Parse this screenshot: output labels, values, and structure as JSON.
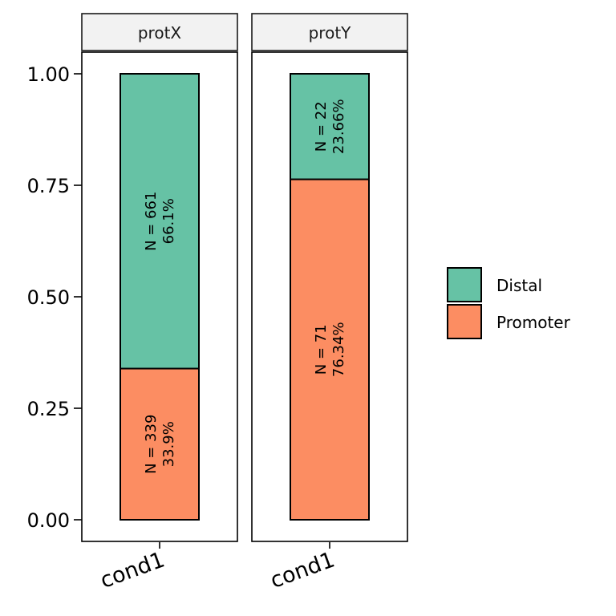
{
  "chart_data": {
    "type": "bar",
    "stacked": true,
    "facet_by": "protein",
    "y_ticks": [
      "0.00",
      "0.25",
      "0.50",
      "0.75",
      "1.00"
    ],
    "y_tick_values": [
      0,
      0.25,
      0.5,
      0.75,
      1.0
    ],
    "ylim": [
      -0.05,
      1.05
    ],
    "grid": false,
    "legend_position": "right",
    "colors": {
      "Distal": "#66c2a5",
      "Promoter": "#fc8d62"
    },
    "legend": [
      {
        "name": "Distal",
        "color": "#66c2a5"
      },
      {
        "name": "Promoter",
        "color": "#fc8d62"
      }
    ],
    "panels": [
      {
        "strip": "protX",
        "category": "cond1",
        "segments": [
          {
            "name": "Promoter",
            "value": 0.339,
            "count_label": "N = 339",
            "pct_label": "33.9%"
          },
          {
            "name": "Distal",
            "value": 0.661,
            "count_label": "N = 661",
            "pct_label": "66.1%"
          }
        ]
      },
      {
        "strip": "protY",
        "category": "cond1",
        "segments": [
          {
            "name": "Promoter",
            "value": 0.7634,
            "count_label": "N = 71",
            "pct_label": "76.34%"
          },
          {
            "name": "Distal",
            "value": 0.2366,
            "count_label": "N = 22",
            "pct_label": "23.66%"
          }
        ]
      }
    ]
  }
}
